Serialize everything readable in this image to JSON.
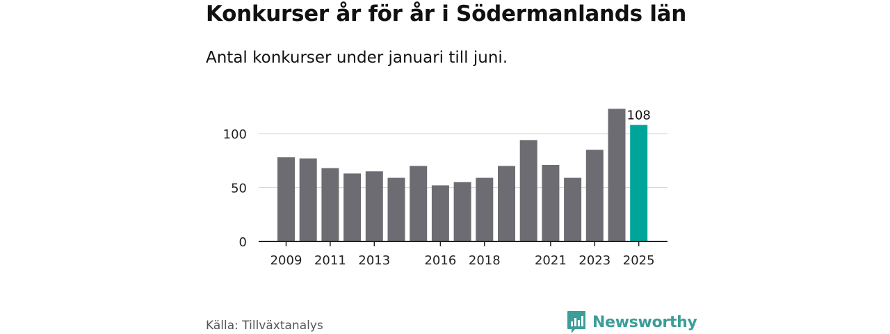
{
  "title": "Konkurser år för år i Södermanlands län",
  "subtitle": "Antal konkurser under januari till juni.",
  "source": "Källa: Tillväxtanalys",
  "brand": {
    "name": "Newsworthy",
    "icon": "newsworthy-logo-icon",
    "color": "#3b9e98"
  },
  "colors": {
    "bar": "#6d6c72",
    "highlight": "#00a59a",
    "grid": "#d9d9d9",
    "axis": "#222222"
  },
  "chart_data": {
    "type": "bar",
    "categories": [
      "2009",
      "2010",
      "2011",
      "2012",
      "2013",
      "2014",
      "2015",
      "2016",
      "2017",
      "2018",
      "2019",
      "2020",
      "2021",
      "2022",
      "2023",
      "2024",
      "2025"
    ],
    "values": [
      78,
      77,
      68,
      63,
      65,
      59,
      70,
      52,
      55,
      59,
      70,
      94,
      71,
      59,
      85,
      123,
      108
    ],
    "x_tick_labels": [
      "2009",
      "2011",
      "2013",
      "2016",
      "2018",
      "2021",
      "2023",
      "2025"
    ],
    "y_ticks": [
      0,
      50,
      100
    ],
    "ylim": [
      0,
      130
    ],
    "highlight_index": 16,
    "data_label": "108",
    "grid": true
  }
}
